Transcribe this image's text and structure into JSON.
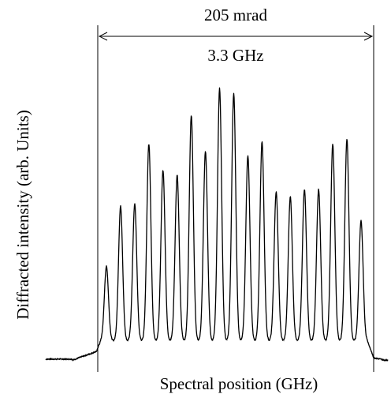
{
  "chart_data": {
    "type": "line",
    "xlabel": "Spectral position (GHz)",
    "ylabel": "Diffracted intensity (arb. Units)",
    "annotations": {
      "span_top": "205 mrad",
      "span_bottom": "3.3 GHz"
    },
    "grid": false,
    "legend": "none",
    "peaks": [
      {
        "x": 1,
        "y": 0.39
      },
      {
        "x": 2,
        "y": 0.64
      },
      {
        "x": 3,
        "y": 0.65
      },
      {
        "x": 4,
        "y": 0.9
      },
      {
        "x": 5,
        "y": 0.79
      },
      {
        "x": 6,
        "y": 0.77
      },
      {
        "x": 7,
        "y": 1.02
      },
      {
        "x": 8,
        "y": 0.87
      },
      {
        "x": 9,
        "y": 1.13
      },
      {
        "x": 10,
        "y": 1.11
      },
      {
        "x": 11,
        "y": 0.85
      },
      {
        "x": 12,
        "y": 0.91
      },
      {
        "x": 13,
        "y": 0.7
      },
      {
        "x": 14,
        "y": 0.68
      },
      {
        "x": 15,
        "y": 0.71
      },
      {
        "x": 16,
        "y": 0.71
      },
      {
        "x": 17,
        "y": 0.9
      },
      {
        "x": 18,
        "y": 0.92
      },
      {
        "x": 19,
        "y": 0.58
      }
    ],
    "baseline_inside": 0.08,
    "baseline_outside": 0.0
  }
}
